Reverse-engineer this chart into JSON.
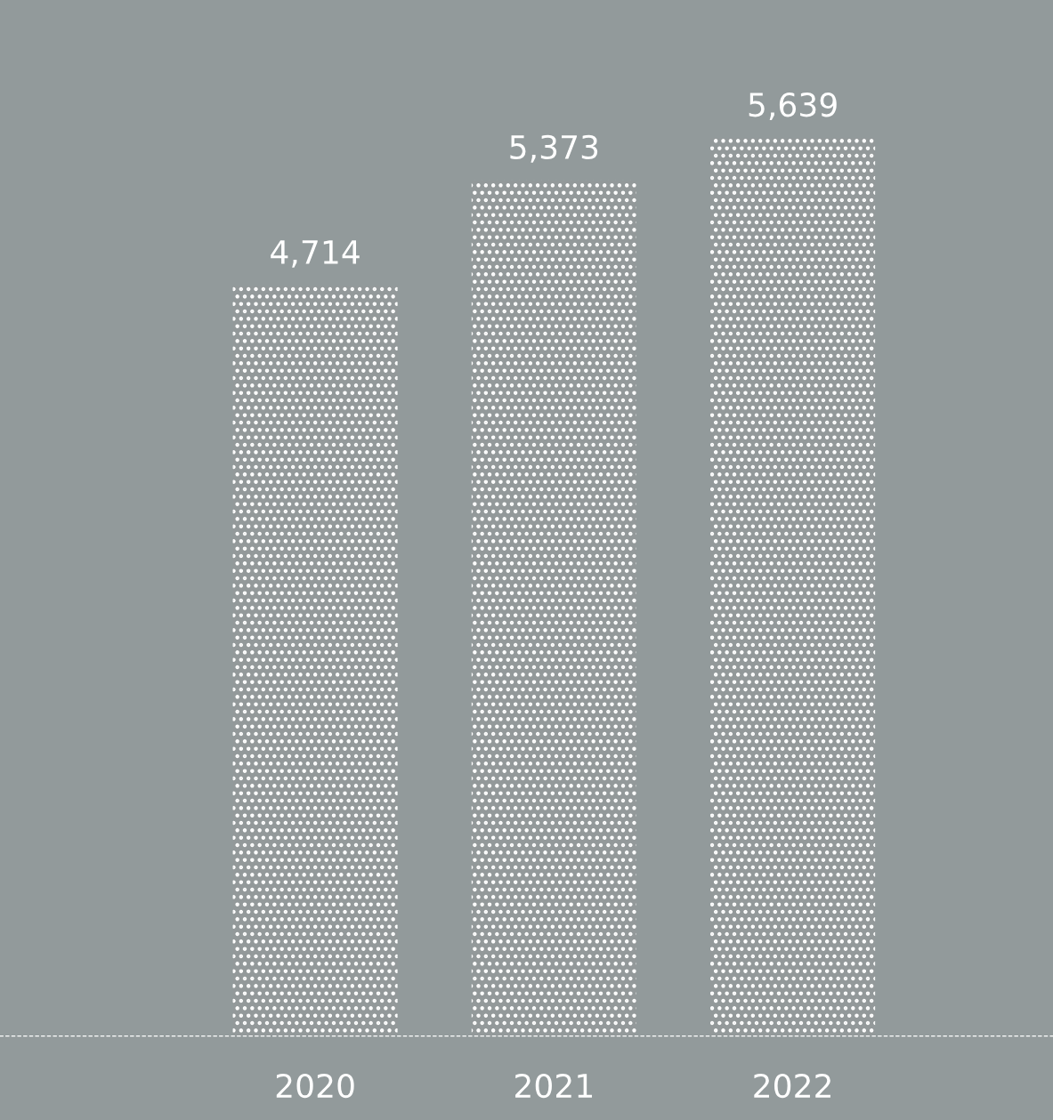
{
  "chart_data": {
    "type": "bar",
    "categories": [
      "2020",
      "2021",
      "2022"
    ],
    "values": [
      4714,
      5373,
      5639
    ],
    "value_labels": [
      "4,714",
      "5,373",
      "5,639"
    ],
    "color": "#ffffff",
    "grid": false,
    "legend": false
  }
}
